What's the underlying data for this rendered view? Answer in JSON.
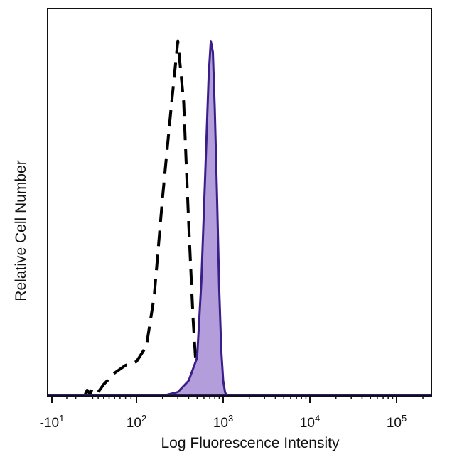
{
  "chart_data": {
    "type": "line",
    "title": "",
    "xlabel": "Log Fluorescence Intensity",
    "ylabel": "Relative Cell Number",
    "x_scale": "biexponential",
    "xlim": [
      -20,
      250000
    ],
    "ylim": [
      0,
      100
    ],
    "ticks": [
      {
        "value": -10,
        "base": "-10",
        "exp": "1"
      },
      {
        "value": 100,
        "base": "10",
        "exp": "2"
      },
      {
        "value": 1000,
        "base": "10",
        "exp": "3"
      },
      {
        "value": 10000,
        "base": "10",
        "exp": "4"
      },
      {
        "value": 100000,
        "base": "10",
        "exp": "5"
      }
    ],
    "grid": false,
    "legend": "none",
    "series": [
      {
        "style": "dashed",
        "color": "#000000",
        "x": [
          5,
          10,
          15,
          20,
          30,
          40,
          60,
          80,
          100,
          130,
          160,
          200,
          250,
          300,
          350,
          400,
          450,
          500
        ],
        "y": [
          0,
          1.5,
          0.5,
          2,
          1,
          3,
          6,
          8,
          9,
          13,
          26,
          52,
          75,
          93,
          77,
          45,
          20,
          3
        ]
      },
      {
        "style": "filled",
        "color": "#3a1f8a",
        "fill": "#b39ddb",
        "x": [
          200,
          300,
          400,
          500,
          560,
          620,
          680,
          720,
          760,
          800,
          850,
          900,
          950,
          1000,
          1050,
          1100
        ],
        "y": [
          0,
          1,
          4,
          10,
          30,
          58,
          84,
          93,
          90,
          75,
          52,
          28,
          12,
          4,
          1,
          0
        ]
      }
    ]
  }
}
